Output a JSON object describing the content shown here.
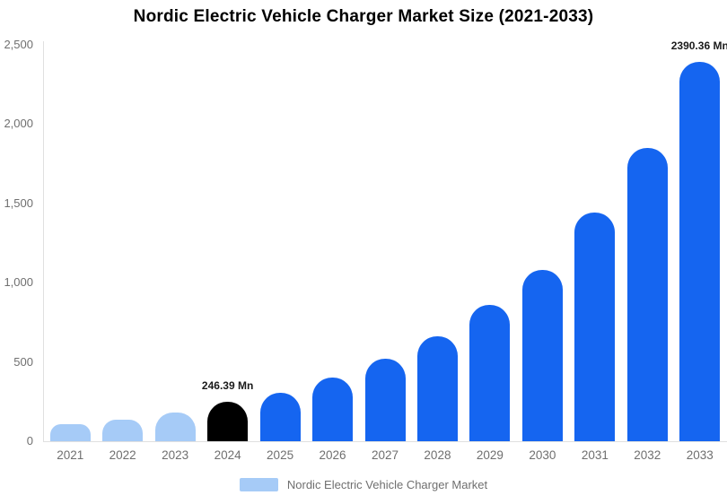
{
  "header": {
    "title": "Nordic Electric Vehicle Charger Market Size (2021-2033)"
  },
  "legend": {
    "label": "Nordic Electric Vehicle Charger Market",
    "swatch_color": "#a6cbf7"
  },
  "colors": {
    "light_blue_bar": "#a6cbf7",
    "blue_bar": "#1565f0",
    "highlight_bar": "#000000",
    "axis_line": "#e0e0e0",
    "tick_text": "#6f6f6f",
    "value_label_text": "#1a1a1a"
  },
  "chart_data": {
    "type": "bar",
    "title": "Nordic Electric Vehicle Charger Market Size (2021-2033)",
    "unit": "Mn",
    "categories": [
      "2021",
      "2022",
      "2023",
      "2024",
      "2025",
      "2026",
      "2027",
      "2028",
      "2029",
      "2030",
      "2031",
      "2032",
      "2033"
    ],
    "values": [
      108,
      138,
      180,
      246.39,
      308,
      400,
      520,
      662,
      858,
      1080,
      1440,
      1850,
      2390.36
    ],
    "point_colors": [
      "#a6cbf7",
      "#a6cbf7",
      "#a6cbf7",
      "#000000",
      "#1565f0",
      "#1565f0",
      "#1565f0",
      "#1565f0",
      "#1565f0",
      "#1565f0",
      "#1565f0",
      "#1565f0",
      "#1565f0"
    ],
    "data_labels": [
      null,
      null,
      null,
      "246.39 Mn",
      null,
      null,
      null,
      null,
      null,
      null,
      null,
      null,
      "2390.36 Mn"
    ],
    "y_ticks": [
      "0",
      "500",
      "1,000",
      "1,500",
      "2,000",
      "2,500"
    ],
    "y_tick_values": [
      0,
      500,
      1000,
      1500,
      2000,
      2500
    ],
    "ylim": [
      0,
      2500
    ],
    "xlabel": "",
    "ylabel": "",
    "grid": false,
    "legend_entries": [
      "Nordic Electric Vehicle Charger Market"
    ],
    "legend_position": "bottom"
  }
}
